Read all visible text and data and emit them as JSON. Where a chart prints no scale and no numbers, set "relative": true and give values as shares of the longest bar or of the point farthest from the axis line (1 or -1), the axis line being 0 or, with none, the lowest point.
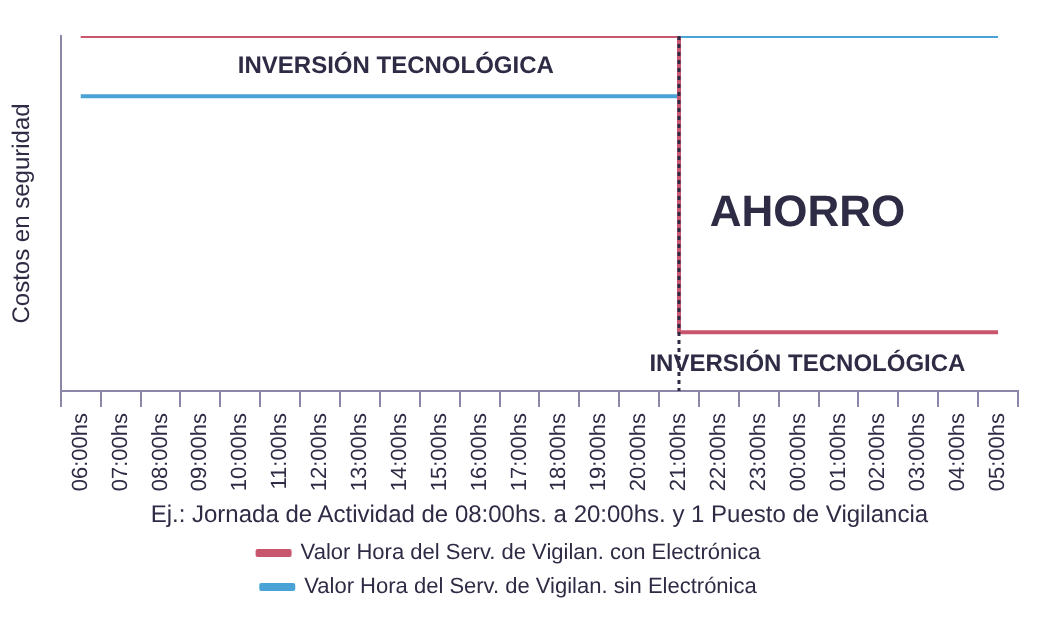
{
  "chart_data": {
    "type": "step",
    "relative": true,
    "xlabel": "Ej.: Jornada de Actividad de 08:00hs. a 20:00hs. y 1 Puesto de Vigilancia",
    "ylabel": "Costos en seguridad",
    "categories": [
      "06:00hs",
      "07:00hs",
      "08:00hs",
      "09:00hs",
      "10:00hs",
      "11:00hs",
      "12:00hs",
      "13:00hs",
      "14:00hs",
      "15:00hs",
      "16:00hs",
      "17:00hs",
      "18:00hs",
      "19:00hs",
      "20:00hs",
      "21:00hs",
      "22:00hs",
      "23:00hs",
      "00:00hs",
      "01:00hs",
      "02:00hs",
      "03:00hs",
      "04:00hs",
      "05:00hs"
    ],
    "series": [
      {
        "name": "Valor Hora del Serv. de Vigilan. con Electrónica",
        "color": "#c8566e",
        "values": [
          1,
          1,
          1,
          1,
          1,
          1,
          1,
          1,
          1,
          1,
          1,
          1,
          1,
          1,
          1,
          0.165,
          0.165,
          0.165,
          0.165,
          0.165,
          0.165,
          0.165,
          0.165,
          0.165
        ]
      },
      {
        "name": "Valor Hora del Serv. de Vigilan. sin Electrónica",
        "color": "#4aa3d6",
        "values": [
          0.83,
          0.83,
          0.83,
          0.83,
          0.83,
          0.83,
          0.83,
          0.83,
          0.83,
          0.83,
          0.83,
          0.83,
          0.83,
          0.83,
          0.83,
          1,
          1,
          1,
          1,
          1,
          1,
          1,
          1,
          1
        ]
      }
    ],
    "ref_lines": [
      {
        "axis": "x",
        "value": "21:00hs",
        "color": "#2e2b45",
        "line_style": "dotted"
      }
    ],
    "annotations": [
      "INVERSIÓN TECNOLÓGICA",
      "AHORRO",
      "INVERSIÓN TECNOLÓGICA"
    ],
    "legend": "bottom",
    "marker": "none",
    "line_style": "solid"
  }
}
